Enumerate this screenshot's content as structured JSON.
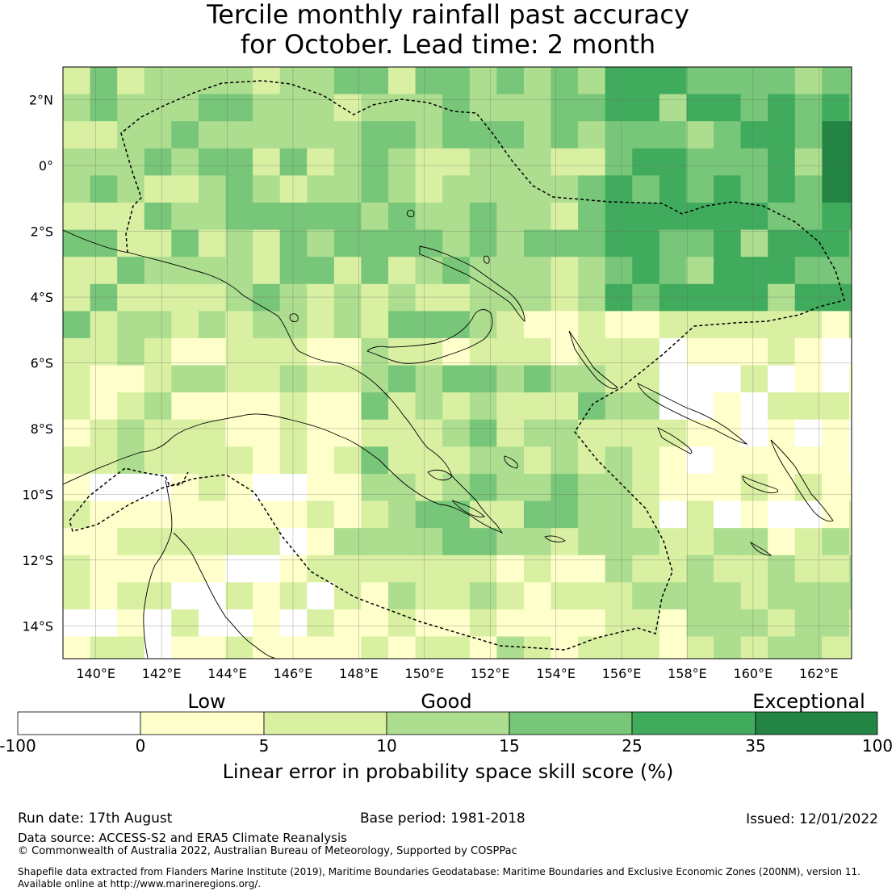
{
  "title": {
    "line1": "Tercile monthly rainfall past accuracy",
    "line2": "for October. Lead time: 2 month"
  },
  "map": {
    "lon_ticks": [
      "140°E",
      "142°E",
      "144°E",
      "146°E",
      "148°E",
      "150°E",
      "152°E",
      "154°E",
      "156°E",
      "158°E",
      "160°E",
      "162°E"
    ],
    "lat_ticks": [
      "2°N",
      "0°",
      "2°S",
      "4°S",
      "6°S",
      "8°S",
      "10°S",
      "12°S",
      "14°S"
    ],
    "lon_range": [
      139,
      163
    ],
    "lat_range": [
      -15,
      3
    ]
  },
  "legend": {
    "words": [
      "Low",
      "Good",
      "Exceptional"
    ],
    "ticks": [
      "-100",
      "0",
      "5",
      "10",
      "15",
      "25",
      "35",
      "100"
    ],
    "colors": [
      "#ffffff",
      "#ffffcc",
      "#d9f0a3",
      "#addd8e",
      "#78c679",
      "#41ab5d",
      "#238443"
    ],
    "label": "Linear error in probability space skill score (%)"
  },
  "footer": {
    "run_date": "Run date: 17th August",
    "base_period": "Base period: 1981-2018",
    "issued": "Issued: 12/01/2022",
    "data_source": "Data source: ACCESS-S2 and ERA5 Climate Reanalysis",
    "copyright": "© Commonwealth of Australia 2022, Australian Bureau of Meteorology, Supported by COSPPac",
    "shapefile_1": "Shapefile data extracted from Flanders Marine Institute (2019), Maritime Boundaries Geodatabase: Maritime Boundaries and Exclusive Economic Zones (200NM), version 11.",
    "shapefile_2": "Available online at http://www.marineregions.org/."
  }
}
